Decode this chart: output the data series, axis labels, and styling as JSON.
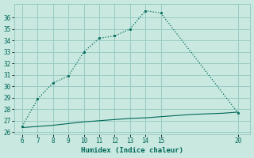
{
  "xlabel": "Humidex (Indice chaleur)",
  "bg_color": "#c8e8e0",
  "grid_color": "#98ccc4",
  "line_color": "#006858",
  "line1_x": [
    6,
    7,
    8,
    9,
    10,
    11,
    12,
    13,
    14,
    15,
    20
  ],
  "line1_y": [
    26.5,
    28.9,
    30.3,
    30.9,
    33.0,
    34.2,
    34.4,
    35.0,
    36.6,
    36.4,
    27.7
  ],
  "line2_x": [
    6,
    7,
    8,
    9,
    10,
    11,
    12,
    13,
    14,
    15,
    16,
    17,
    18,
    19,
    20
  ],
  "line2_y": [
    26.4,
    26.5,
    26.6,
    26.75,
    26.9,
    27.0,
    27.1,
    27.2,
    27.25,
    27.35,
    27.45,
    27.55,
    27.6,
    27.65,
    27.75
  ],
  "xlim": [
    5.5,
    20.8
  ],
  "ylim": [
    25.8,
    37.2
  ],
  "xticks": [
    6,
    7,
    8,
    9,
    10,
    11,
    12,
    13,
    14,
    15,
    20
  ],
  "yticks": [
    26,
    27,
    28,
    29,
    30,
    31,
    32,
    33,
    34,
    35,
    36
  ]
}
